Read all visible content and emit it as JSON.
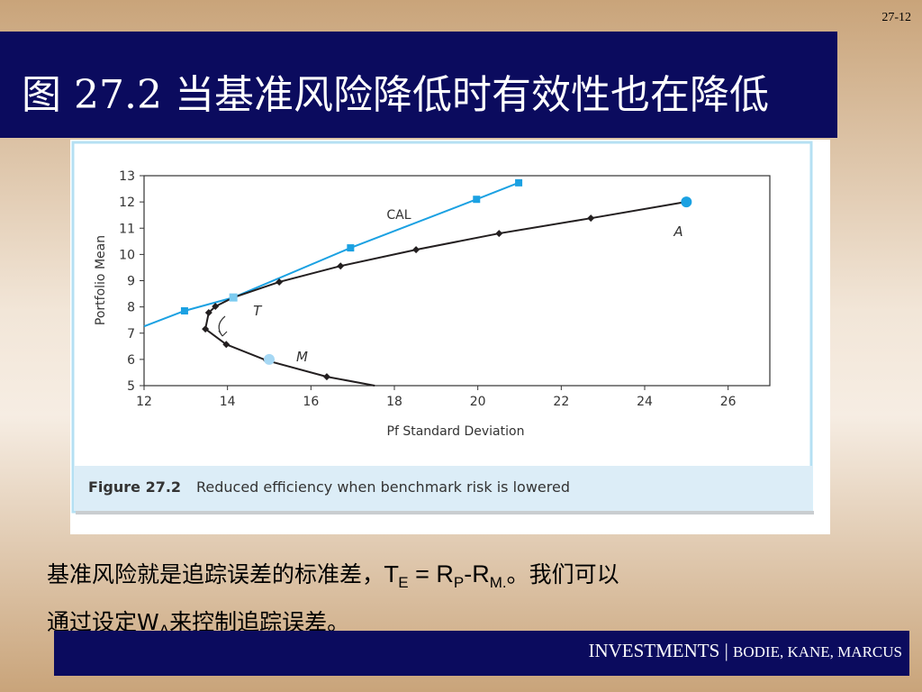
{
  "page_number": "27-12",
  "slide_title": "图 27.2 当基准风险降低时有效性也在降低",
  "chart_data": {
    "type": "line",
    "xlabel": "Pf Standard Deviation",
    "ylabel": "Portfolio Mean",
    "xlim": [
      12,
      27
    ],
    "xticks": [
      12,
      14,
      16,
      18,
      20,
      22,
      24,
      26
    ],
    "ylim": [
      5,
      13
    ],
    "yticks": [
      5,
      6,
      7,
      8,
      9,
      10,
      11,
      12,
      13
    ],
    "series": [
      {
        "name": "CAL",
        "color": "#1ba1e2",
        "marker": "square",
        "x": [
          12,
          12.97,
          14.14,
          16.95,
          19.97,
          20.98
        ],
        "values": [
          7.26,
          7.85,
          8.36,
          10.25,
          12.1,
          12.73
        ]
      },
      {
        "color": "#231f20",
        "marker": "diamond",
        "x": [
          17.53,
          16.38,
          14.94,
          13.97,
          13.47,
          13.55,
          13.71,
          14.14,
          15.24,
          16.71,
          18.52,
          20.51,
          22.71,
          24.98
        ],
        "values": [
          5,
          5.34,
          5.96,
          6.57,
          7.16,
          7.78,
          8.02,
          8.36,
          8.95,
          9.56,
          10.18,
          10.8,
          11.38,
          12
        ]
      }
    ],
    "points": [
      {
        "label": "A",
        "x": 25,
        "y": 12,
        "color": "#1ba1e2"
      },
      {
        "label": "T",
        "x": 14.14,
        "y": 8.36,
        "color": "#7ccbf0"
      },
      {
        "label": "M",
        "x": 15,
        "y": 6,
        "color": "#a6d8f4"
      }
    ],
    "caption_label": "Figure 27.2",
    "caption": "Reduced efficiency when benchmark risk is lowered"
  },
  "body": {
    "line1": [
      "基准风险就是追踪误差的标准差，T",
      "E",
      " = R",
      "P",
      "-R",
      "M.",
      "。我们可以"
    ],
    "line2": [
      "通过设定W",
      "A",
      "来控制追踪误差。"
    ]
  },
  "footer": {
    "main": "INVESTMENTS",
    "sep": "|",
    "authors": "BODIE, KANE, MARCUS"
  }
}
